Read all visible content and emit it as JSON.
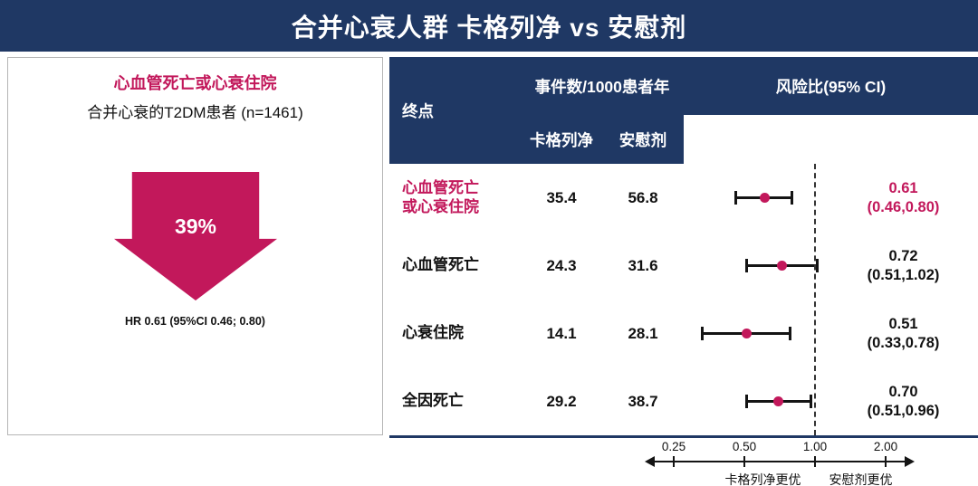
{
  "header": {
    "title": "合并心衰人群 卡格列净 vs 安慰剂"
  },
  "left_panel": {
    "title": "心血管死亡或心衰住院",
    "population": "合并心衰的T2DM患者 (n=1461)",
    "reduction_label": "39%",
    "hr_note": "HR 0.61 (95%CI 0.46; 0.80)"
  },
  "table": {
    "col_endpoint": "终点",
    "col_events": "事件数/1000患者年",
    "col_cana": "卡格列净",
    "col_placebo": "安慰剂",
    "col_hr": "风险比(95% CI)"
  },
  "axis": {
    "ticks": [
      0.25,
      0.5,
      1.0,
      2.0
    ],
    "tick_labels": [
      "0.25",
      "0.50",
      "1.00",
      "2.00"
    ],
    "left_label": "卡格列净更优",
    "right_label": "安慰剂更优"
  },
  "colors": {
    "navy": "#1F3864",
    "accent": "#C2185B"
  },
  "chart_data": {
    "type": "scatter",
    "subtype": "forest-plot",
    "title": "合并心衰人群 卡格列净 vs 安慰剂",
    "x_scale": "log",
    "x_ticks": [
      0.25,
      0.5,
      1.0,
      2.0
    ],
    "reference_line": 1.0,
    "xlabel": "风险比(95% CI)",
    "rate_unit": "事件数/1000患者年",
    "rows": [
      {
        "endpoint_lines": [
          "心血管死亡",
          "或心衰住院"
        ],
        "cana_rate": 35.4,
        "placebo_rate": 56.8,
        "hr": 0.61,
        "ci_low": 0.46,
        "ci_high": 0.8,
        "hr_label": "0.61",
        "ci_label": "(0.46,0.80)",
        "highlight": true
      },
      {
        "endpoint_lines": [
          "心血管死亡"
        ],
        "cana_rate": 24.3,
        "placebo_rate": 31.6,
        "hr": 0.72,
        "ci_low": 0.51,
        "ci_high": 1.02,
        "hr_label": "0.72",
        "ci_label": "(0.51,1.02)",
        "highlight": false
      },
      {
        "endpoint_lines": [
          "心衰住院"
        ],
        "cana_rate": 14.1,
        "placebo_rate": 28.1,
        "hr": 0.51,
        "ci_low": 0.33,
        "ci_high": 0.78,
        "hr_label": "0.51",
        "ci_label": "(0.33,0.78)",
        "highlight": false
      },
      {
        "endpoint_lines": [
          "全因死亡"
        ],
        "cana_rate": 29.2,
        "placebo_rate": 38.7,
        "hr": 0.7,
        "ci_low": 0.51,
        "ci_high": 0.96,
        "hr_label": "0.70",
        "ci_label": "(0.51,0.96)",
        "highlight": false
      }
    ]
  }
}
